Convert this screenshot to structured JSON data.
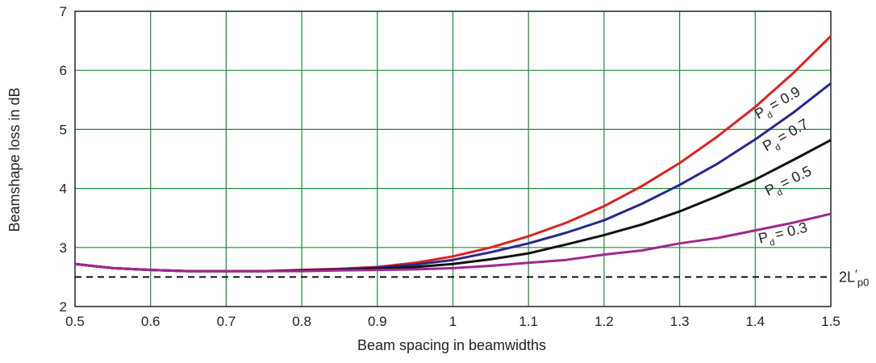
{
  "chart_data": {
    "type": "line",
    "title": "",
    "xlabel": "Beam spacing in beamwidths",
    "ylabel": "Beamshape loss in dB",
    "xlim": [
      0.5,
      1.5
    ],
    "ylim": [
      2,
      7
    ],
    "xticks": [
      0.5,
      0.6,
      0.7,
      0.8,
      0.9,
      1,
      1.1,
      1.2,
      1.3,
      1.4,
      1.5
    ],
    "xtick_labels": [
      "0.5",
      "0.6",
      "0.7",
      "0.8",
      "0.9",
      "1",
      "1.1",
      "1.2",
      "1.3",
      "1.4",
      "1.5"
    ],
    "yticks": [
      2,
      3,
      4,
      5,
      6,
      7
    ],
    "ytick_labels": [
      "2",
      "3",
      "4",
      "5",
      "6",
      "7"
    ],
    "grid": true,
    "grid_color": "#1a8a3c",
    "series": [
      {
        "name": "P_d = 0.9",
        "label_main": "P",
        "label_sub": "d",
        "label_value": "= 0.9",
        "color": "#e02020",
        "x": [
          0.5,
          0.55,
          0.6,
          0.65,
          0.7,
          0.75,
          0.8,
          0.85,
          0.9,
          0.95,
          1.0,
          1.05,
          1.1,
          1.15,
          1.2,
          1.25,
          1.3,
          1.35,
          1.4,
          1.45,
          1.5
        ],
        "y": [
          2.72,
          2.65,
          2.62,
          2.6,
          2.6,
          2.6,
          2.62,
          2.64,
          2.67,
          2.74,
          2.85,
          3.0,
          3.19,
          3.42,
          3.7,
          4.04,
          4.43,
          4.88,
          5.38,
          5.95,
          6.58
        ]
      },
      {
        "name": "P_d = 0.7",
        "label_main": "P",
        "label_sub": "d",
        "label_value": "= 0.7",
        "color": "#28288a",
        "x": [
          0.5,
          0.55,
          0.6,
          0.65,
          0.7,
          0.75,
          0.8,
          0.85,
          0.9,
          0.95,
          1.0,
          1.05,
          1.1,
          1.15,
          1.2,
          1.25,
          1.3,
          1.35,
          1.4,
          1.45,
          1.5
        ],
        "y": [
          2.72,
          2.65,
          2.62,
          2.6,
          2.6,
          2.6,
          2.61,
          2.63,
          2.66,
          2.71,
          2.79,
          2.92,
          3.07,
          3.25,
          3.46,
          3.74,
          4.06,
          4.42,
          4.83,
          5.28,
          5.78
        ]
      },
      {
        "name": "P_d = 0.5",
        "label_main": "P",
        "label_sub": "d",
        "label_value": "= 0.5",
        "color": "#111111",
        "x": [
          0.5,
          0.55,
          0.6,
          0.65,
          0.7,
          0.75,
          0.8,
          0.85,
          0.9,
          0.95,
          1.0,
          1.05,
          1.1,
          1.15,
          1.2,
          1.25,
          1.3,
          1.35,
          1.4,
          1.45,
          1.5
        ],
        "y": [
          2.72,
          2.65,
          2.62,
          2.6,
          2.6,
          2.6,
          2.61,
          2.62,
          2.64,
          2.67,
          2.72,
          2.8,
          2.9,
          3.05,
          3.21,
          3.39,
          3.61,
          3.87,
          4.15,
          4.48,
          4.82
        ]
      },
      {
        "name": "P_d = 0.3",
        "label_main": "P",
        "label_sub": "d",
        "label_value": "= 0.3",
        "color": "#a0288c",
        "x": [
          0.5,
          0.55,
          0.6,
          0.65,
          0.7,
          0.75,
          0.8,
          0.85,
          0.9,
          0.95,
          1.0,
          1.05,
          1.1,
          1.15,
          1.2,
          1.25,
          1.3,
          1.35,
          1.4,
          1.45,
          1.5
        ],
        "y": [
          2.72,
          2.65,
          2.62,
          2.6,
          2.6,
          2.6,
          2.6,
          2.61,
          2.62,
          2.63,
          2.65,
          2.69,
          2.74,
          2.79,
          2.88,
          2.95,
          3.07,
          3.16,
          3.29,
          3.42,
          3.57
        ]
      }
    ],
    "reference_line": {
      "y": 2.5,
      "style": "dashed",
      "color": "#111111",
      "label_main": "2L",
      "label_prime": "′",
      "label_sub": "p0"
    }
  }
}
